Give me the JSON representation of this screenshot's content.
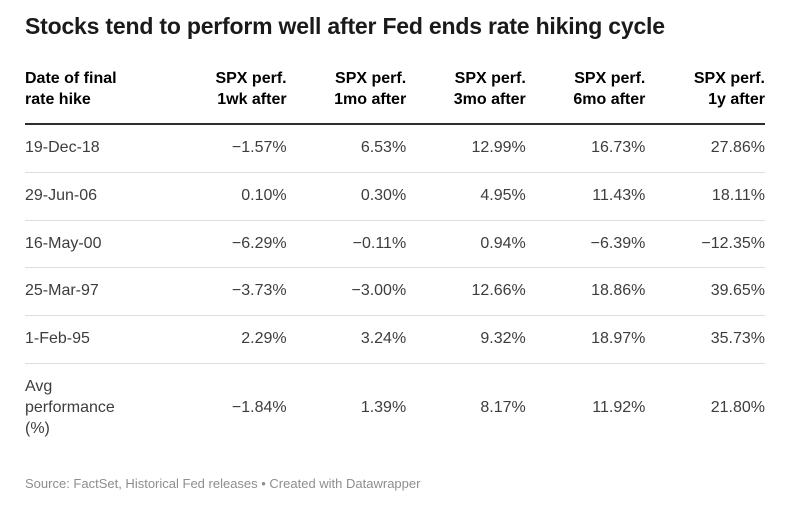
{
  "title": "Stocks tend to perform well after Fed ends rate hiking cycle",
  "table": {
    "headers": [
      "Date of final\nrate hike",
      "SPX perf.\n1wk after",
      "SPX perf.\n1mo after",
      "SPX perf.\n3mo after",
      "SPX perf.\n6mo after",
      "SPX perf.\n1y after"
    ],
    "rows": [
      [
        "19-Dec-18",
        "−1.57%",
        "6.53%",
        "12.99%",
        "16.73%",
        "27.86%"
      ],
      [
        "29-Jun-06",
        "0.10%",
        "0.30%",
        "4.95%",
        "11.43%",
        "18.11%"
      ],
      [
        "16-May-00",
        "−6.29%",
        "−0.11%",
        "0.94%",
        "−6.39%",
        "−12.35%"
      ],
      [
        "25-Mar-97",
        "−3.73%",
        "−3.00%",
        "12.66%",
        "18.86%",
        "39.65%"
      ],
      [
        "1-Feb-95",
        "2.29%",
        "3.24%",
        "9.32%",
        "18.97%",
        "35.73%"
      ],
      [
        "Avg\nperformance\n(%)",
        "−1.84%",
        "1.39%",
        "8.17%",
        "11.92%",
        "21.80%"
      ]
    ]
  },
  "footer": {
    "text": "Source: FactSet, Historical Fed releases • Created with Datawrapper"
  },
  "colors": {
    "title_text": "#1a1a1a",
    "header_text": "#000000",
    "body_text": "#3d3d3d",
    "header_rule": "#2e2e2e",
    "row_divider": "#dddddd",
    "footer_text": "#8e8e8e",
    "background": "#ffffff"
  },
  "chart_data": {
    "type": "table",
    "title": "Stocks tend to perform well after Fed ends rate hiking cycle",
    "columns": [
      "Date of final rate hike",
      "SPX perf. 1wk after",
      "SPX perf. 1mo after",
      "SPX perf. 3mo after",
      "SPX perf. 6mo after",
      "SPX perf. 1y after"
    ],
    "categories": [
      "19-Dec-18",
      "29-Jun-06",
      "16-May-00",
      "25-Mar-97",
      "1-Feb-95",
      "Avg performance (%)"
    ],
    "series": [
      {
        "name": "SPX perf. 1wk after",
        "values": [
          -1.57,
          0.1,
          -6.29,
          -3.73,
          2.29,
          -1.84
        ]
      },
      {
        "name": "SPX perf. 1mo after",
        "values": [
          6.53,
          0.3,
          -0.11,
          -3.0,
          3.24,
          1.39
        ]
      },
      {
        "name": "SPX perf. 3mo after",
        "values": [
          12.99,
          4.95,
          0.94,
          12.66,
          9.32,
          8.17
        ]
      },
      {
        "name": "SPX perf. 6mo after",
        "values": [
          16.73,
          11.43,
          -6.39,
          18.86,
          18.97,
          11.92
        ]
      },
      {
        "name": "SPX perf. 1y after",
        "values": [
          27.86,
          18.11,
          -12.35,
          39.65,
          35.73,
          21.8
        ]
      }
    ],
    "units": "%",
    "source_note": "Source: FactSet, Historical Fed releases • Created with Datawrapper"
  }
}
